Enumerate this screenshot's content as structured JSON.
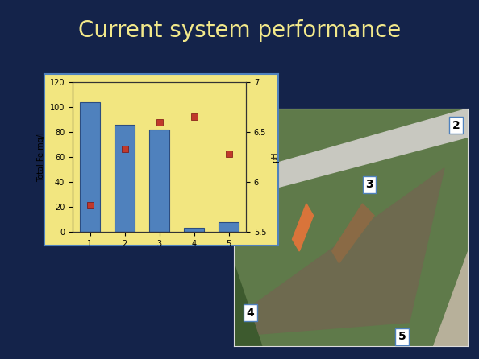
{
  "slide_title": "Current system performance",
  "photo_labels": [
    "2",
    "3",
    "4",
    "5"
  ],
  "chart_data": {
    "type": "bar",
    "categories": [
      "1",
      "2",
      "3",
      "4",
      "5"
    ],
    "y_label": "Total Fe mg/l",
    "y2_label": "pH",
    "ylim": [
      0,
      120
    ],
    "yticks": [
      0,
      20,
      40,
      60,
      80,
      100,
      120
    ],
    "y2lim": [
      5.5,
      7
    ],
    "y2ticks": [
      5.5,
      6,
      6.5,
      7
    ],
    "grid": false,
    "series": [
      {
        "type": "bar",
        "color": "#4f81bd",
        "values": [
          104,
          86,
          82,
          3,
          8
        ]
      },
      {
        "type": "scatter",
        "axis": "y2",
        "color": "#c0392b",
        "marker": "square",
        "values": [
          5.77,
          6.33,
          6.6,
          6.65,
          6.28
        ]
      }
    ]
  }
}
